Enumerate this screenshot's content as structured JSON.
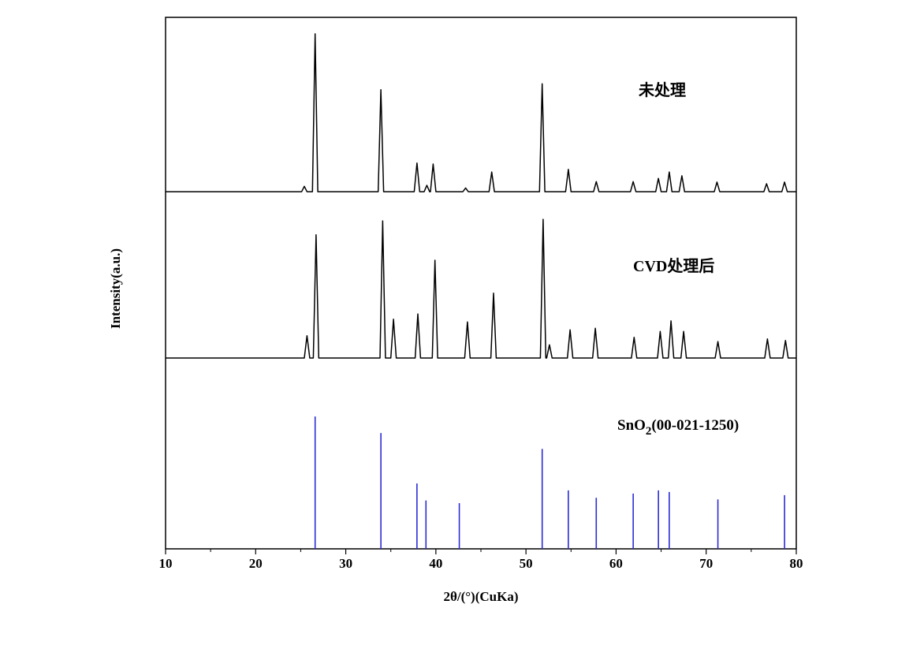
{
  "chart_data": {
    "type": "line",
    "xlabel": "2θ/(°)(CuKa)",
    "ylabel": "Intensity(a.u.)",
    "xlim": [
      10,
      80
    ],
    "ylim": [
      0,
      100
    ],
    "xticks": [
      10,
      20,
      30,
      40,
      50,
      60,
      70,
      80
    ],
    "xminorticks": [
      15,
      25,
      35,
      45,
      55,
      65,
      75
    ],
    "annotations": [
      [
        "未处理"
      ],
      [
        "CVD处理后"
      ],
      [
        "SnO",
        "2",
        "(00-021-1250)"
      ]
    ],
    "series": [
      {
        "style": "line",
        "color": "#000000",
        "x": [
          10,
          25.1,
          25.4,
          25.7,
          26.3,
          26.6,
          26.9,
          33.6,
          33.9,
          34.2,
          37.6,
          37.9,
          38.2,
          38.7,
          39.0,
          39.3,
          39.4,
          39.7,
          40.0,
          43.0,
          43.3,
          43.6,
          45.9,
          46.2,
          46.5,
          51.5,
          51.8,
          52.1,
          54.4,
          54.7,
          55.0,
          57.5,
          57.8,
          58.1,
          61.6,
          61.9,
          62.2,
          64.4,
          64.7,
          65.0,
          65.6,
          65.9,
          66.2,
          67.0,
          67.3,
          67.6,
          70.9,
          71.2,
          71.5,
          76.4,
          76.7,
          77.0,
          78.4,
          78.7,
          79.0,
          80
        ],
        "values": [
          67.2,
          67.2,
          68.2,
          67.2,
          67.2,
          96.9,
          67.2,
          67.2,
          86.4,
          67.2,
          67.2,
          72.6,
          67.2,
          67.2,
          68.4,
          67.2,
          67.2,
          72.4,
          67.2,
          67.2,
          67.9,
          67.2,
          67.2,
          70.9,
          67.2,
          67.2,
          87.5,
          67.2,
          67.2,
          71.4,
          67.2,
          67.2,
          69.1,
          67.2,
          67.2,
          69.1,
          67.2,
          67.2,
          69.7,
          67.2,
          67.2,
          70.9,
          67.2,
          67.2,
          70.2,
          67.2,
          67.2,
          69.0,
          67.2,
          67.2,
          68.7,
          67.2,
          67.2,
          69.0,
          67.2,
          67.2
        ]
      },
      {
        "style": "line",
        "color": "#000000",
        "x": [
          10,
          25.4,
          25.7,
          26.0,
          26.4,
          26.7,
          27.0,
          33.8,
          34.1,
          34.4,
          35.0,
          35.3,
          35.6,
          37.7,
          38.0,
          38.3,
          39.6,
          39.9,
          40.2,
          43.2,
          43.5,
          43.8,
          46.1,
          46.4,
          46.7,
          51.6,
          51.9,
          52.2,
          52.3,
          52.6,
          52.9,
          54.6,
          54.9,
          55.2,
          57.4,
          57.7,
          58.0,
          61.7,
          62.0,
          62.3,
          64.6,
          64.9,
          65.2,
          65.8,
          66.1,
          66.4,
          67.2,
          67.5,
          67.8,
          71.0,
          71.3,
          71.6,
          76.5,
          76.8,
          77.1,
          78.5,
          78.8,
          79.1,
          80
        ],
        "values": [
          35.9,
          35.9,
          40.1,
          35.9,
          35.9,
          59.1,
          35.9,
          35.9,
          61.7,
          35.9,
          35.9,
          43.2,
          35.9,
          35.9,
          44.2,
          35.9,
          35.9,
          54.3,
          35.9,
          35.9,
          42.7,
          35.9,
          35.9,
          48.1,
          35.9,
          35.9,
          62.0,
          35.9,
          35.9,
          38.4,
          35.9,
          35.9,
          41.2,
          35.9,
          35.9,
          41.5,
          35.9,
          35.9,
          39.8,
          35.9,
          35.9,
          40.9,
          35.9,
          35.9,
          42.9,
          35.9,
          35.9,
          40.9,
          35.9,
          35.9,
          39.0,
          35.9,
          35.9,
          39.5,
          35.9,
          35.9,
          39.2,
          35.9,
          35.9
        ]
      },
      {
        "style": "stick",
        "color": "#2b2bd6",
        "x": [
          26.6,
          33.9,
          37.9,
          38.9,
          42.6,
          51.8,
          54.7,
          57.8,
          61.9,
          64.7,
          65.9,
          71.3,
          78.7
        ],
        "values": [
          24.9,
          21.8,
          12.3,
          9.1,
          8.6,
          18.8,
          11.0,
          9.6,
          10.4,
          11.0,
          10.7,
          9.3,
          10.1
        ]
      }
    ]
  }
}
